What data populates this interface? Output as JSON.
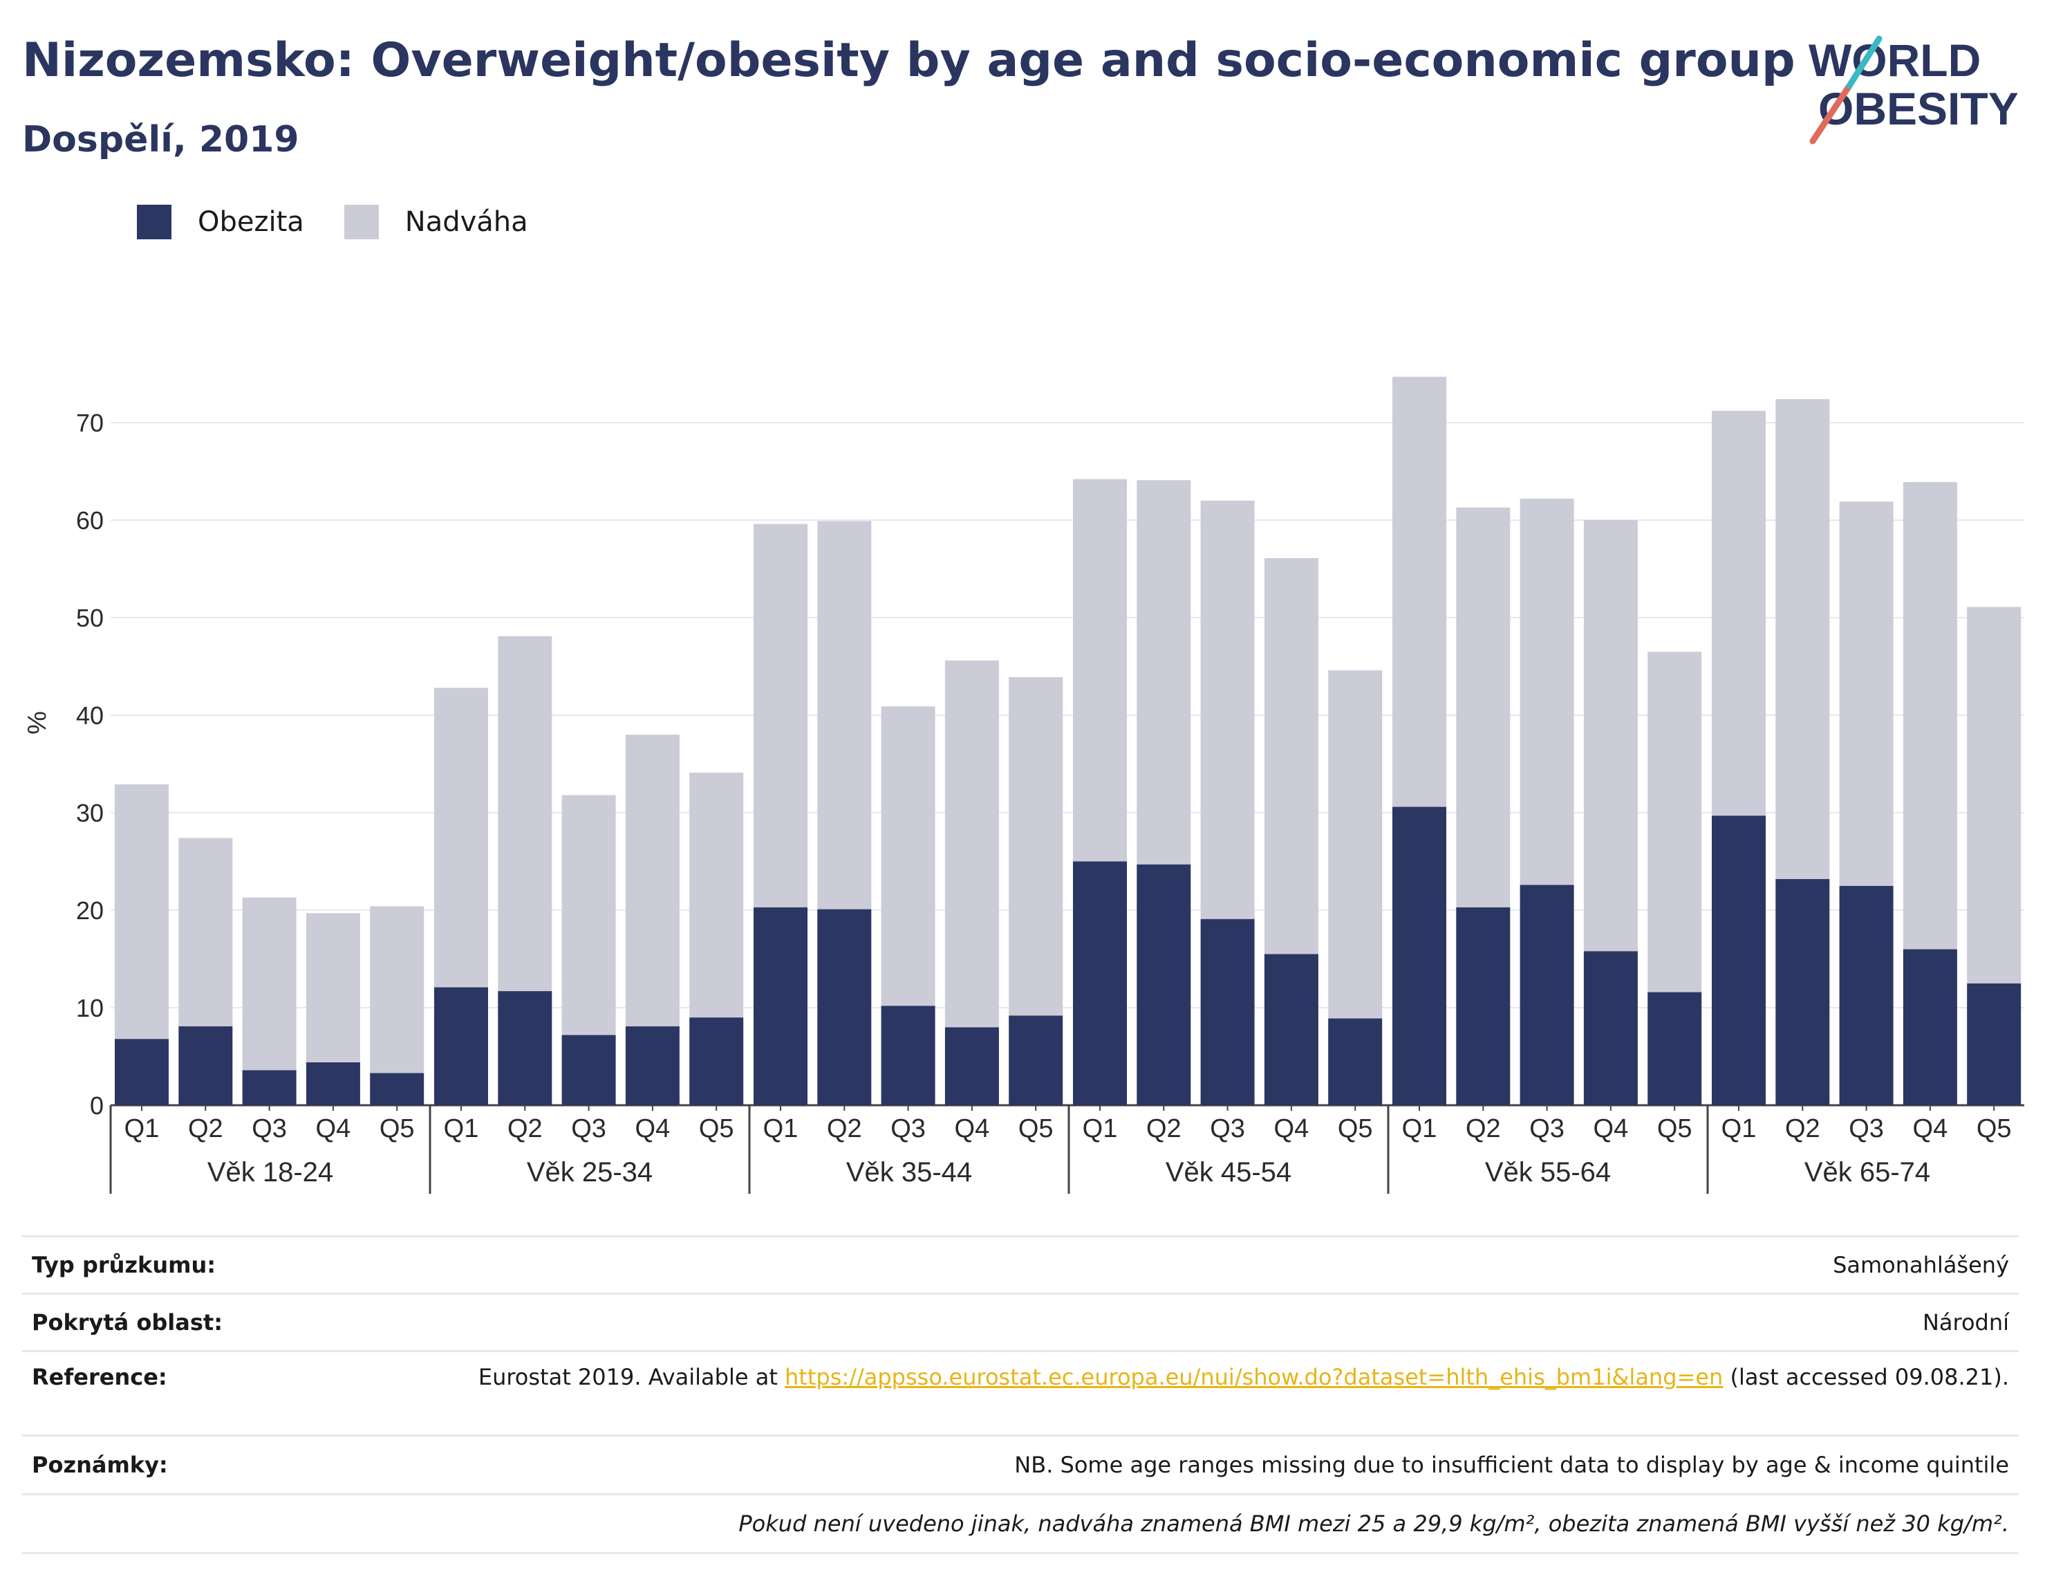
{
  "title": "Nizozemsko: Overweight/obesity by age and socio-economic group",
  "subtitle": "Dospělí, 2019",
  "logo": {
    "line1": "WORLD",
    "line2": "OBESITY"
  },
  "legend": [
    {
      "label": "Obezita",
      "color": "#2b3663"
    },
    {
      "label": "Nadváha",
      "color": "#cbccd8"
    }
  ],
  "chart_data": {
    "type": "bar",
    "stacked": true,
    "ylabel": "%",
    "ylim": [
      0,
      80
    ],
    "yticks": [
      0,
      10,
      20,
      30,
      40,
      50,
      60,
      70
    ],
    "grid": true,
    "legend_position": "top-left",
    "groups": [
      "Věk 18-24",
      "Věk 25-34",
      "Věk 35-44",
      "Věk 45-54",
      "Věk 55-64",
      "Věk 65-74"
    ],
    "quintiles": [
      "Q1",
      "Q2",
      "Q3",
      "Q4",
      "Q5"
    ],
    "series": [
      {
        "name": "Obezita",
        "color": "#2b3663",
        "values": [
          6.8,
          8.1,
          3.6,
          4.4,
          3.3,
          12.1,
          11.7,
          7.2,
          8.1,
          9.0,
          20.3,
          20.1,
          10.2,
          8.0,
          9.2,
          25.0,
          24.7,
          19.1,
          15.5,
          8.9,
          30.6,
          20.3,
          22.6,
          15.8,
          11.6,
          29.7,
          23.2,
          22.5,
          16.0,
          12.5
        ]
      },
      {
        "name": "Nadváha",
        "color": "#cbccd8",
        "values": [
          26.1,
          19.3,
          17.7,
          15.3,
          17.1,
          30.7,
          36.4,
          24.6,
          29.9,
          25.1,
          39.3,
          39.8,
          30.7,
          37.6,
          34.7,
          39.2,
          39.4,
          42.9,
          40.6,
          35.7,
          44.1,
          41.0,
          39.6,
          44.2,
          34.9,
          41.5,
          49.2,
          39.4,
          47.9,
          38.6
        ]
      }
    ]
  },
  "info": {
    "survey_label": "Typ průzkumu:",
    "survey_value": "Samonahlášený",
    "area_label": "Pokrytá oblast:",
    "area_value": "Národní",
    "ref_label": "Reference:",
    "ref_prefix": "Eurostat 2019. Available at ",
    "ref_link": "https://appsso.eurostat.ec.europa.eu/nui/show.do?dataset=hlth_ehis_bm1i&lang=en",
    "ref_suffix": " (last accessed 09.08.21).",
    "notes_label": "Poznámky:",
    "notes_value": "NB. Some age ranges missing due to insufficient data to display by age & income quintile",
    "definition": "Pokud není uvedeno jinak, nadváha znamená BMI mezi 25 a 29,9 kg/m², obezita znamená BMI vyšší než 30 kg/m²."
  }
}
